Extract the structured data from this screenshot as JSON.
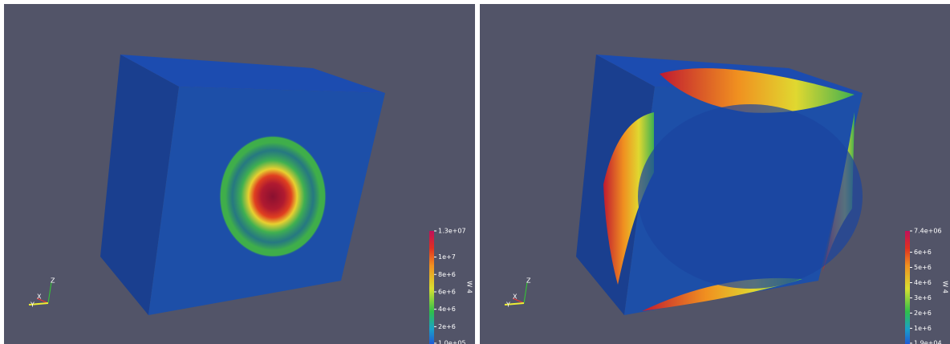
{
  "panels": [
    {
      "colorbar": {
        "title": "W 4",
        "ticks": [
          {
            "value": 13000000,
            "label": "1.3e+07"
          },
          {
            "value": 10000000,
            "label": "1e+7"
          },
          {
            "value": 8000000,
            "label": "8e+6"
          },
          {
            "value": 6000000,
            "label": "6e+6"
          },
          {
            "value": 4000000,
            "label": "4e+6"
          },
          {
            "value": 2000000,
            "label": "2e+6"
          },
          {
            "value": 100000,
            "label": "1.0e+05"
          }
        ]
      },
      "axes": [
        "Z",
        "X",
        "Y"
      ]
    },
    {
      "colorbar": {
        "title": "W 4",
        "ticks": [
          {
            "value": 7400000,
            "label": "7.4e+06"
          },
          {
            "value": 6000000,
            "label": "6e+6"
          },
          {
            "value": 5000000,
            "label": "5e+6"
          },
          {
            "value": 4000000,
            "label": "4e+6"
          },
          {
            "value": 3000000,
            "label": "3e+6"
          },
          {
            "value": 2000000,
            "label": "2e+6"
          },
          {
            "value": 1000000,
            "label": "1e+6"
          },
          {
            "value": 19000,
            "label": "1.9e+04"
          }
        ]
      },
      "axes": [
        "Z",
        "X",
        "Y"
      ]
    }
  ]
}
